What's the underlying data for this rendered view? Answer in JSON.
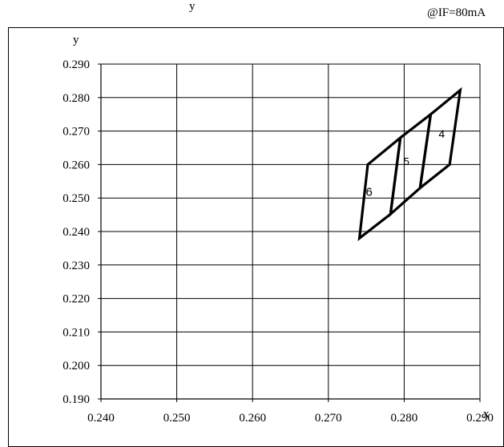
{
  "chart_data": {
    "type": "line",
    "title_fragment": "y",
    "condition": "@IF=80mA",
    "xlabel": "x",
    "ylabel": "y",
    "xlim": [
      0.24,
      0.29
    ],
    "ylim": [
      0.19,
      0.29
    ],
    "x_ticks": [
      "0.240",
      "0.250",
      "0.260",
      "0.270",
      "0.280",
      "0.290"
    ],
    "y_ticks": [
      "0.190",
      "0.200",
      "0.210",
      "0.220",
      "0.230",
      "0.240",
      "0.250",
      "0.260",
      "0.270",
      "0.280",
      "0.290"
    ],
    "grid": true,
    "bins": [
      {
        "name": "6",
        "points": [
          [
            0.2741,
            0.238
          ],
          [
            0.2752,
            0.26
          ],
          [
            0.2795,
            0.268
          ],
          [
            0.2782,
            0.2452
          ]
        ]
      },
      {
        "name": "5",
        "points": [
          [
            0.2782,
            0.2452
          ],
          [
            0.2795,
            0.268
          ],
          [
            0.2835,
            0.275
          ],
          [
            0.2821,
            0.253
          ]
        ]
      },
      {
        "name": "4",
        "points": [
          [
            0.2821,
            0.253
          ],
          [
            0.2835,
            0.275
          ],
          [
            0.2874,
            0.2822
          ],
          [
            0.286,
            0.26
          ]
        ]
      }
    ]
  }
}
